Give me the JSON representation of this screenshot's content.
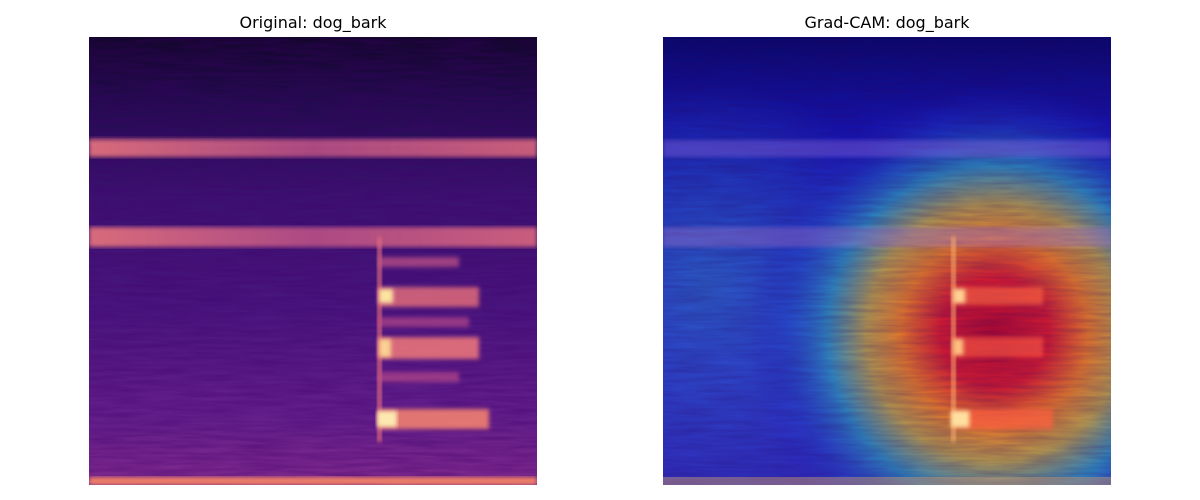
{
  "panels": {
    "left": {
      "title": "Original: dog_bark",
      "colormap": "magma"
    },
    "right": {
      "title": "Grad-CAM: dog_bark",
      "colormap": "jet overlay"
    }
  },
  "colors": {
    "background": "#ffffff",
    "spec_dark": "#1a0a44",
    "spec_mid": "#5b1c8a",
    "spec_band": "#e06a7e",
    "spec_bright": "#fde3a0",
    "cam_low": "#1a10c8",
    "cam_mid": "#2aa0c0",
    "cam_high": "#d81430"
  }
}
